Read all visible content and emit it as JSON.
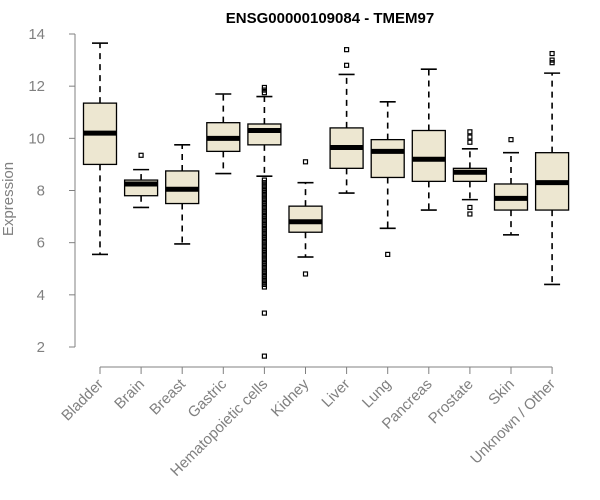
{
  "chart_data": {
    "type": "boxplot",
    "title": "ENSG00000109084 - TMEM97",
    "xlabel": "",
    "ylabel": "Expression",
    "ylim": [
      1.5,
      14
    ],
    "yticks": [
      2,
      4,
      6,
      8,
      10,
      12,
      14
    ],
    "box_fill": "#ede7d1",
    "categories": [
      "Bladder",
      "Brain",
      "Breast",
      "Gastric",
      "Hematopoietic cells",
      "Kidney",
      "Liver",
      "Lung",
      "Pancreas",
      "Prostate",
      "Skin",
      "Unknown / Other"
    ],
    "series": [
      {
        "name": "Bladder",
        "whisker_low": 5.55,
        "q1": 9.0,
        "median": 10.2,
        "q3": 11.35,
        "whisker_high": 13.65,
        "outliers": []
      },
      {
        "name": "Brain",
        "whisker_low": 7.35,
        "q1": 7.8,
        "median": 8.25,
        "q3": 8.4,
        "whisker_high": 8.8,
        "outliers": [
          9.35
        ]
      },
      {
        "name": "Breast",
        "whisker_low": 5.95,
        "q1": 7.5,
        "median": 8.05,
        "q3": 8.75,
        "whisker_high": 9.75,
        "outliers": []
      },
      {
        "name": "Gastric",
        "whisker_low": 8.65,
        "q1": 9.5,
        "median": 10.0,
        "q3": 10.6,
        "whisker_high": 11.7,
        "outliers": []
      },
      {
        "name": "Hematopoietic cells",
        "whisker_low": 8.55,
        "q1": 9.75,
        "median": 10.3,
        "q3": 10.55,
        "whisker_high": 11.6,
        "outliers": [
          1.65,
          3.3,
          4.3,
          4.4,
          4.5,
          4.6,
          4.7,
          4.8,
          4.9,
          5.0,
          5.1,
          5.2,
          5.3,
          5.4,
          5.5,
          5.6,
          5.7,
          5.8,
          5.9,
          6.0,
          6.1,
          6.2,
          6.3,
          6.4,
          6.5,
          6.6,
          6.7,
          6.8,
          6.9,
          7.0,
          7.1,
          7.2,
          7.3,
          7.4,
          7.5,
          7.6,
          7.7,
          7.8,
          7.9,
          8.0,
          8.1,
          8.2,
          8.3,
          8.4,
          11.75,
          11.85,
          11.95
        ]
      },
      {
        "name": "Kidney",
        "whisker_low": 5.45,
        "q1": 6.4,
        "median": 6.8,
        "q3": 7.4,
        "whisker_high": 8.3,
        "outliers": [
          4.8,
          9.1
        ]
      },
      {
        "name": "Liver",
        "whisker_low": 7.9,
        "q1": 8.85,
        "median": 9.65,
        "q3": 10.4,
        "whisker_high": 12.45,
        "outliers": [
          12.8,
          13.4
        ]
      },
      {
        "name": "Lung",
        "whisker_low": 6.55,
        "q1": 8.5,
        "median": 9.5,
        "q3": 9.95,
        "whisker_high": 11.4,
        "outliers": [
          5.55
        ]
      },
      {
        "name": "Pancreas",
        "whisker_low": 7.25,
        "q1": 8.35,
        "median": 9.2,
        "q3": 10.3,
        "whisker_high": 12.65,
        "outliers": []
      },
      {
        "name": "Prostate",
        "whisker_low": 7.65,
        "q1": 8.35,
        "median": 8.7,
        "q3": 8.85,
        "whisker_high": 9.6,
        "outliers": [
          7.1,
          7.35,
          9.85,
          10.05,
          10.25
        ]
      },
      {
        "name": "Skin",
        "whisker_low": 6.3,
        "q1": 7.25,
        "median": 7.7,
        "q3": 8.25,
        "whisker_high": 9.45,
        "outliers": [
          9.95
        ]
      },
      {
        "name": "Unknown / Other",
        "whisker_low": 4.4,
        "q1": 7.25,
        "median": 8.3,
        "q3": 9.45,
        "whisker_high": 12.5,
        "outliers": [
          12.9,
          13.0,
          13.25
        ]
      }
    ]
  }
}
